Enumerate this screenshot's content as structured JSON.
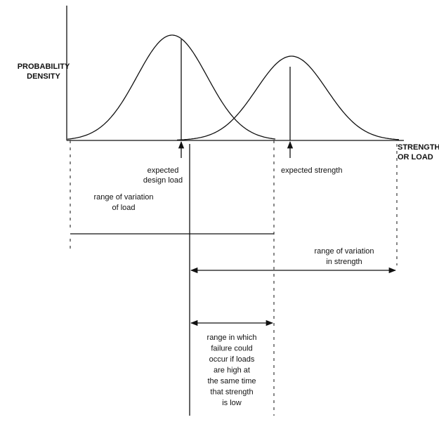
{
  "y_axis_label": [
    "PROBABILITY",
    "DENSITY"
  ],
  "x_axis_label": [
    "STRENGTH",
    "OR LOAD"
  ],
  "expected_design_load": [
    "expected",
    "design load"
  ],
  "expected_strength": [
    "expected strength"
  ],
  "load_range": [
    "range of variation",
    "of load"
  ],
  "strength_range": [
    "range of variation",
    "in strength"
  ],
  "failure_range": [
    "range in which",
    "failure could",
    "occur if loads",
    "are high at",
    "the same time",
    "that strength",
    "is low"
  ]
}
